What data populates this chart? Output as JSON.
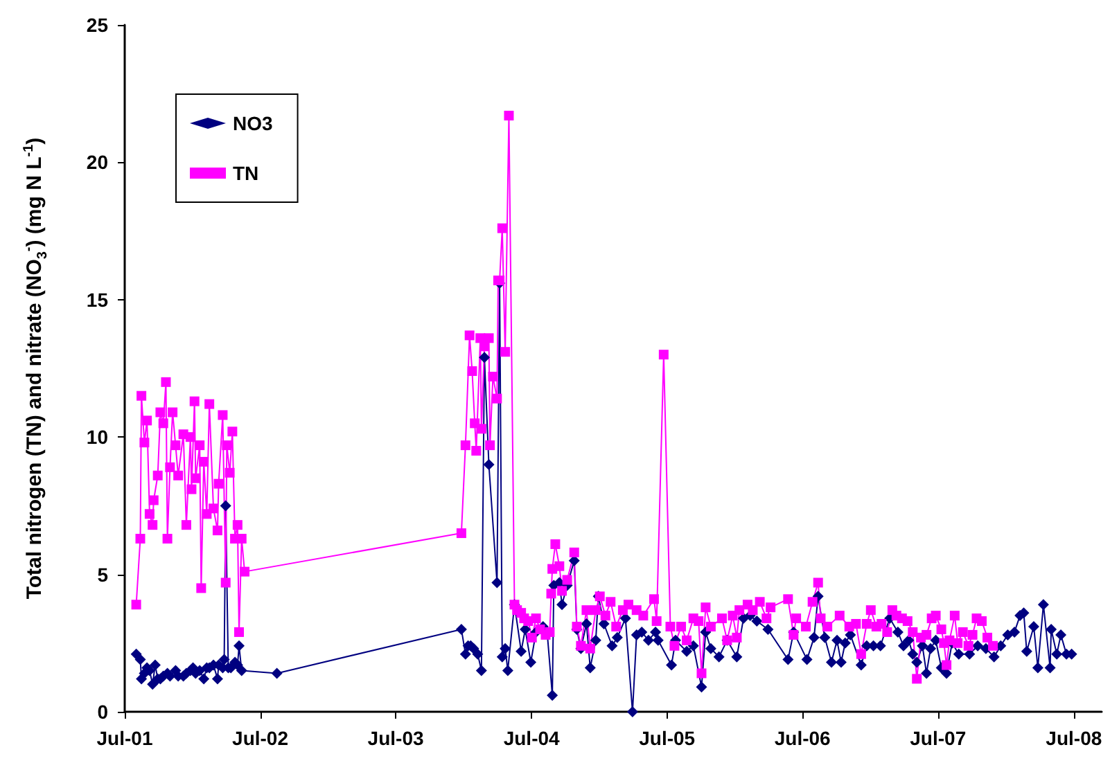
{
  "chart_data": {
    "type": "line",
    "ylabel": "Total nitrogen (TN) and nitrate (NO$_{3}$$^{-}$)  (mg N  L$^{-1}$)",
    "xlim": [
      "2001-07-01",
      "2008-09-14"
    ],
    "xticks": [
      {
        "value": "2001-07-01",
        "label": "Jul-01"
      },
      {
        "value": "2002-07-01",
        "label": "Jul-02"
      },
      {
        "value": "2003-07-01",
        "label": "Jul-03"
      },
      {
        "value": "2004-07-01",
        "label": "Jul-04"
      },
      {
        "value": "2005-07-01",
        "label": "Jul-05"
      },
      {
        "value": "2006-07-01",
        "label": "Jul-06"
      },
      {
        "value": "2007-07-01",
        "label": "Jul-07"
      },
      {
        "value": "2008-07-01",
        "label": "Jul-08"
      }
    ],
    "ylim": [
      0,
      25
    ],
    "yticks": [
      0,
      5,
      10,
      15,
      20,
      25
    ],
    "grid": false,
    "legend": "top left",
    "line_style": "solid",
    "series": [
      {
        "name": "NO3",
        "color": "#000080",
        "marker": "diamond",
        "x": [
          "2001-08-01",
          "2001-08-12",
          "2001-08-15",
          "2001-08-23",
          "2001-08-30",
          "2001-09-06",
          "2001-09-14",
          "2001-09-21",
          "2001-09-28",
          "2001-10-05",
          "2001-10-13",
          "2001-10-24",
          "2001-10-31",
          "2001-11-15",
          "2001-11-22",
          "2001-12-06",
          "2001-12-14",
          "2001-12-25",
          "2002-01-01",
          "2002-01-08",
          "2002-01-19",
          "2002-01-30",
          "2002-02-07",
          "2002-02-14",
          "2002-02-25",
          "2002-03-08",
          "2002-03-11",
          "2002-03-22",
          "2002-03-26",
          "2002-03-30",
          "2002-04-06",
          "2002-04-13",
          "2002-04-24",
          "2002-05-01",
          "2002-05-05",
          "2002-05-12",
          "2002-08-15",
          "2003-12-25",
          "2004-01-05",
          "2004-01-12",
          "2004-01-19",
          "2004-01-27",
          "2004-02-07",
          "2004-02-17",
          "2004-02-25",
          "2004-03-08",
          "2004-03-30",
          "2004-04-06",
          "2004-04-13",
          "2004-04-21",
          "2004-04-28",
          "2004-05-16",
          "2004-06-03",
          "2004-06-14",
          "2004-06-29",
          "2004-07-13",
          "2004-08-01",
          "2004-08-12",
          "2004-08-26",
          "2004-08-30",
          "2004-09-14",
          "2004-09-21",
          "2004-10-05",
          "2004-10-24",
          "2004-10-31",
          "2004-11-11",
          "2004-11-26",
          "2004-12-06",
          "2004-12-21",
          "2004-12-28",
          "2005-01-12",
          "2005-02-03",
          "2005-02-17",
          "2005-03-11",
          "2005-03-30",
          "2005-04-10",
          "2005-04-24",
          "2005-05-12",
          "2005-05-31",
          "2005-06-07",
          "2005-07-13",
          "2005-07-24",
          "2005-08-23",
          "2005-09-10",
          "2005-10-02",
          "2005-10-13",
          "2005-10-27",
          "2005-11-18",
          "2005-12-10",
          "2006-01-05",
          "2006-01-23",
          "2006-02-10",
          "2006-02-28",
          "2006-03-30",
          "2006-05-23",
          "2006-06-07",
          "2006-07-13",
          "2006-08-01",
          "2006-08-12",
          "2006-08-30",
          "2006-09-17",
          "2006-10-02",
          "2006-10-13",
          "2006-10-24",
          "2006-11-07",
          "2006-12-06",
          "2006-12-21",
          "2007-01-08",
          "2007-01-27",
          "2007-02-21",
          "2007-03-15",
          "2007-03-30",
          "2007-04-13",
          "2007-04-24",
          "2007-05-05",
          "2007-05-20",
          "2007-05-31",
          "2007-06-11",
          "2007-06-25",
          "2007-07-10",
          "2007-07-24",
          "2007-08-08",
          "2007-08-26",
          "2007-09-24",
          "2007-10-16",
          "2007-11-07",
          "2007-11-29",
          "2007-12-17",
          "2008-01-05",
          "2008-01-23",
          "2008-02-07",
          "2008-02-17",
          "2008-02-25",
          "2008-03-15",
          "2008-03-26",
          "2008-04-10",
          "2008-04-28",
          "2008-05-01",
          "2008-05-16",
          "2008-05-27",
          "2008-06-11",
          "2008-06-25"
        ],
        "values": [
          2.1,
          1.9,
          1.2,
          1.4,
          1.6,
          1.5,
          1.0,
          1.7,
          1.2,
          1.2,
          1.3,
          1.4,
          1.3,
          1.5,
          1.3,
          1.3,
          1.4,
          1.5,
          1.6,
          1.4,
          1.5,
          1.2,
          1.6,
          1.6,
          1.7,
          1.2,
          1.7,
          1.6,
          1.9,
          7.5,
          1.6,
          1.6,
          1.8,
          1.7,
          2.4,
          1.5,
          1.4,
          3.0,
          2.1,
          2.4,
          2.4,
          2.3,
          2.1,
          1.5,
          12.9,
          9.0,
          4.7,
          15.6,
          2.0,
          2.3,
          1.5,
          3.9,
          2.2,
          3.0,
          1.8,
          2.9,
          3.1,
          2.9,
          0.6,
          4.6,
          4.7,
          3.9,
          4.6,
          5.5,
          3.0,
          2.3,
          3.2,
          1.6,
          2.6,
          4.2,
          3.2,
          2.4,
          2.7,
          3.4,
          0.0,
          2.8,
          2.9,
          2.6,
          2.9,
          2.6,
          1.7,
          2.6,
          2.2,
          2.4,
          0.9,
          2.9,
          2.3,
          2.0,
          2.6,
          2.0,
          3.4,
          3.5,
          3.3,
          3.0,
          1.9,
          2.9,
          1.9,
          2.7,
          4.2,
          2.7,
          1.8,
          2.6,
          1.8,
          2.5,
          2.8,
          1.7,
          2.4,
          2.4,
          2.4,
          3.4,
          2.9,
          2.4,
          2.6,
          2.1,
          1.8,
          2.4,
          1.4,
          2.3,
          2.6,
          1.6,
          1.4,
          2.5,
          2.1,
          2.1,
          2.4,
          2.3,
          2.0,
          2.4,
          2.8,
          2.9,
          3.5,
          3.6,
          2.2,
          3.1,
          1.6,
          3.9,
          1.6,
          3.0,
          2.1,
          2.8,
          2.1,
          2.1
        ]
      },
      {
        "name": "TN",
        "color": "#ff00ff",
        "marker": "square",
        "x": [
          "2001-08-01",
          "2001-08-12",
          "2001-08-15",
          "2001-08-23",
          "2001-08-30",
          "2001-09-06",
          "2001-09-14",
          "2001-09-17",
          "2001-09-28",
          "2001-10-05",
          "2001-10-13",
          "2001-10-20",
          "2001-10-24",
          "2001-10-31",
          "2001-11-07",
          "2001-11-15",
          "2001-11-22",
          "2001-12-06",
          "2001-12-14",
          "2001-12-25",
          "2001-12-28",
          "2002-01-05",
          "2002-01-08",
          "2002-01-19",
          "2002-01-23",
          "2002-01-30",
          "2002-02-07",
          "2002-02-14",
          "2002-02-25",
          "2002-03-08",
          "2002-03-11",
          "2002-03-22",
          "2002-03-30",
          "2002-04-02",
          "2002-04-10",
          "2002-04-17",
          "2002-04-24",
          "2002-05-01",
          "2002-05-05",
          "2002-05-12",
          "2002-05-20",
          "2003-12-25",
          "2004-01-05",
          "2004-01-16",
          "2004-01-23",
          "2004-01-30",
          "2004-02-03",
          "2004-02-14",
          "2004-02-17",
          "2004-02-25",
          "2004-03-08",
          "2004-03-11",
          "2004-03-19",
          "2004-03-30",
          "2004-04-02",
          "2004-04-06",
          "2004-04-13",
          "2004-04-21",
          "2004-05-01",
          "2004-05-16",
          "2004-05-23",
          "2004-06-03",
          "2004-06-11",
          "2004-06-22",
          "2004-07-02",
          "2004-07-13",
          "2004-07-24",
          "2004-08-08",
          "2004-08-19",
          "2004-08-23",
          "2004-08-26",
          "2004-09-03",
          "2004-09-14",
          "2004-09-21",
          "2004-10-05",
          "2004-10-24",
          "2004-10-31",
          "2004-11-11",
          "2004-11-26",
          "2004-12-06",
          "2004-12-21",
          "2005-01-01",
          "2005-01-16",
          "2005-01-30",
          "2005-02-14",
          "2005-03-04",
          "2005-03-19",
          "2005-04-10",
          "2005-04-28",
          "2005-05-27",
          "2005-06-03",
          "2005-06-22",
          "2005-07-10",
          "2005-07-21",
          "2005-08-08",
          "2005-08-23",
          "2005-09-10",
          "2005-09-24",
          "2005-10-02",
          "2005-10-13",
          "2005-10-27",
          "2005-11-26",
          "2005-12-10",
          "2005-12-25",
          "2006-01-05",
          "2006-01-12",
          "2006-02-03",
          "2006-02-17",
          "2006-03-08",
          "2006-03-26",
          "2006-04-06",
          "2006-05-23",
          "2006-06-07",
          "2006-06-14",
          "2006-07-10",
          "2006-07-28",
          "2006-08-12",
          "2006-08-19",
          "2006-09-06",
          "2006-10-09",
          "2006-11-04",
          "2006-11-22",
          "2006-12-06",
          "2006-12-21",
          "2007-01-01",
          "2007-01-16",
          "2007-01-30",
          "2007-02-14",
          "2007-02-28",
          "2007-03-11",
          "2007-03-26",
          "2007-04-10",
          "2007-04-24",
          "2007-05-05",
          "2007-05-16",
          "2007-05-31",
          "2007-06-14",
          "2007-06-25",
          "2007-07-10",
          "2007-07-17",
          "2007-07-24",
          "2007-08-01",
          "2007-08-15",
          "2007-08-23",
          "2007-09-06",
          "2007-09-21",
          "2007-10-02",
          "2007-10-13",
          "2007-10-27",
          "2007-11-11",
          "2007-11-26"
        ],
        "values": [
          3.9,
          6.3,
          11.5,
          9.8,
          10.6,
          7.2,
          6.8,
          7.7,
          8.6,
          10.9,
          10.5,
          12.0,
          6.3,
          8.9,
          10.9,
          9.7,
          8.6,
          10.1,
          6.8,
          10.0,
          8.1,
          11.3,
          8.5,
          9.7,
          4.5,
          9.1,
          7.2,
          11.2,
          7.4,
          6.6,
          8.3,
          10.8,
          4.7,
          9.7,
          8.7,
          10.2,
          6.3,
          6.8,
          2.9,
          6.3,
          5.1,
          6.5,
          9.7,
          13.7,
          12.4,
          10.5,
          9.5,
          13.6,
          10.3,
          13.3,
          13.6,
          9.7,
          12.2,
          11.4,
          15.7,
          15.7,
          17.6,
          13.1,
          21.7,
          3.9,
          3.7,
          3.6,
          3.4,
          3.3,
          2.7,
          3.4,
          3.0,
          2.8,
          2.9,
          4.3,
          5.2,
          6.1,
          5.3,
          4.4,
          4.8,
          5.8,
          3.1,
          2.4,
          3.7,
          2.3,
          3.7,
          4.2,
          3.5,
          4.0,
          3.1,
          3.7,
          3.9,
          3.7,
          3.5,
          4.1,
          3.3,
          13.0,
          3.1,
          2.4,
          3.1,
          2.6,
          3.4,
          3.3,
          1.4,
          3.8,
          3.1,
          3.4,
          2.6,
          3.5,
          2.7,
          3.7,
          3.9,
          3.7,
          4.0,
          3.4,
          3.8,
          4.1,
          2.8,
          3.4,
          3.1,
          4.0,
          4.7,
          3.4,
          3.1,
          3.5,
          3.1,
          3.2,
          2.1,
          3.2,
          3.7,
          3.1,
          3.2,
          2.9,
          3.7,
          3.5,
          3.4,
          3.3,
          2.9,
          1.2,
          2.7,
          2.8,
          3.4,
          3.5,
          3.0,
          2.5,
          1.7,
          2.6,
          3.5,
          2.5,
          2.9,
          2.4,
          2.8,
          3.4,
          3.3,
          2.7,
          2.4
        ]
      }
    ]
  }
}
